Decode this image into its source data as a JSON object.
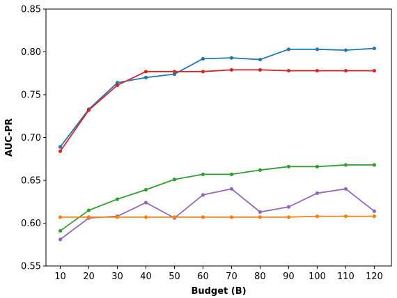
{
  "chart_data": {
    "type": "line",
    "title": "",
    "xlabel": "Budget (B)",
    "ylabel": "AUC-PR",
    "xlim": [
      5,
      126
    ],
    "ylim": [
      0.55,
      0.85
    ],
    "grid": false,
    "x": [
      10,
      20,
      30,
      40,
      50,
      60,
      70,
      80,
      90,
      100,
      110,
      120
    ],
    "x_ticks": [
      "10",
      "20",
      "30",
      "40",
      "50",
      "60",
      "70",
      "80",
      "90",
      "100",
      "110",
      "120"
    ],
    "y_ticks": [
      {
        "value": 0.55,
        "label": "0.55"
      },
      {
        "value": 0.6,
        "label": "0.60"
      },
      {
        "value": 0.65,
        "label": "0.65"
      },
      {
        "value": 0.7,
        "label": "0.70"
      },
      {
        "value": 0.75,
        "label": "0.75"
      },
      {
        "value": 0.8,
        "label": "0.80"
      },
      {
        "value": 0.85,
        "label": "0.85"
      }
    ],
    "series": [
      {
        "color": "#1f77b4",
        "values": [
          0.689,
          0.733,
          0.764,
          0.77,
          0.774,
          0.792,
          0.793,
          0.791,
          0.803,
          0.803,
          0.802,
          0.804
        ]
      },
      {
        "color": "#d62728",
        "values": [
          0.684,
          0.732,
          0.761,
          0.777,
          0.777,
          0.777,
          0.779,
          0.779,
          0.778,
          0.778,
          0.778,
          0.778
        ]
      },
      {
        "color": "#2ca02c",
        "values": [
          0.591,
          0.615,
          0.628,
          0.639,
          0.651,
          0.657,
          0.657,
          0.662,
          0.666,
          0.666,
          0.668,
          0.668
        ]
      },
      {
        "color": "#9467bd",
        "values": [
          0.581,
          0.606,
          0.608,
          0.624,
          0.606,
          0.633,
          0.64,
          0.613,
          0.619,
          0.635,
          0.64,
          0.614
        ]
      },
      {
        "color": "#ff7f0e",
        "values": [
          0.607,
          0.607,
          0.607,
          0.607,
          0.607,
          0.607,
          0.607,
          0.607,
          0.607,
          0.608,
          0.608,
          0.608
        ]
      }
    ]
  }
}
